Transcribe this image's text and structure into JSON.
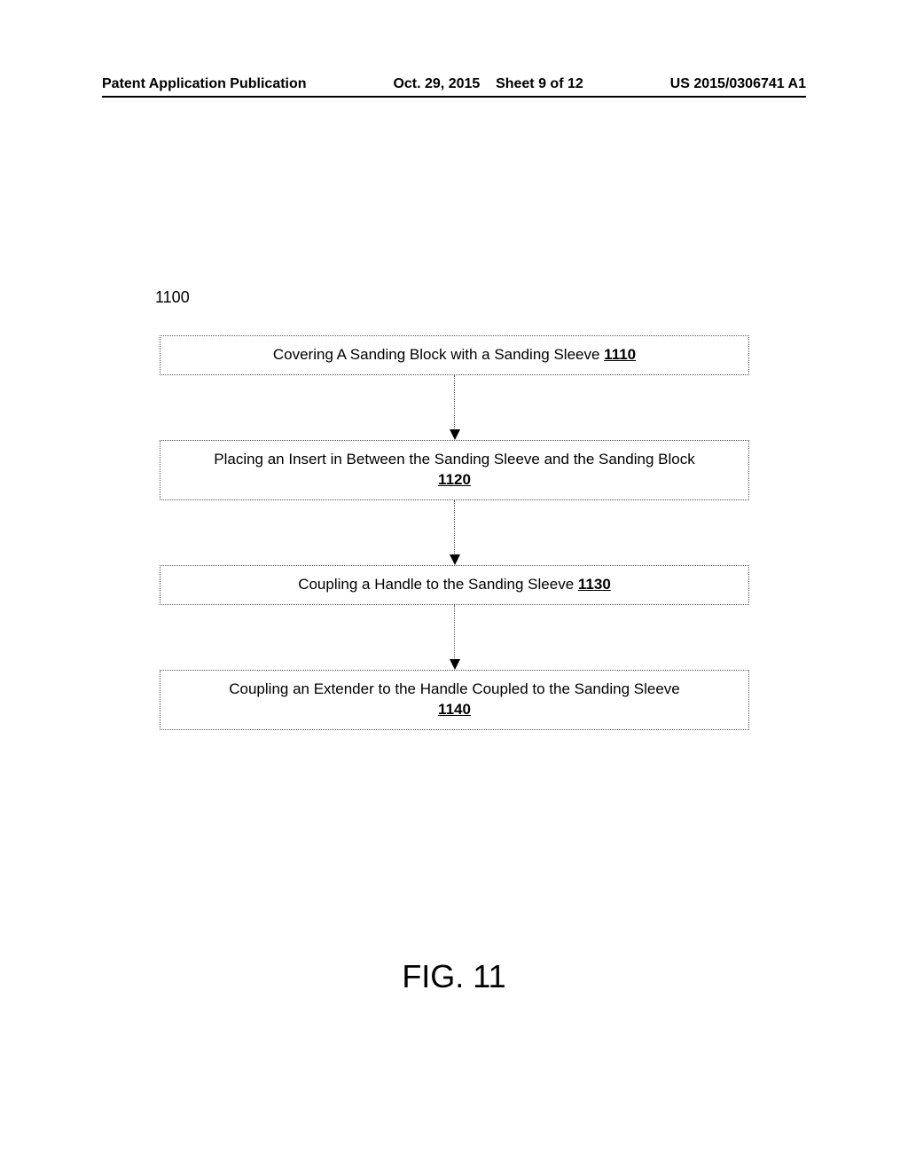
{
  "header": {
    "publication_type": "Patent Application Publication",
    "date": "Oct. 29, 2015",
    "sheet_info": "Sheet 9 of 12",
    "publication_number": "US 2015/0306741 A1"
  },
  "diagram": {
    "reference_number": "1100",
    "figure_label": "FIG. 11",
    "type": "flowchart",
    "box_border_style": "dotted",
    "box_border_color": "#555555",
    "arrow_style": "dotted",
    "arrow_color": "#555555",
    "arrowhead_color": "#000000",
    "background_color": "#ffffff",
    "text_color": "#000000",
    "font_size_body": 17,
    "font_size_figure_label": 36,
    "font_size_header": 16,
    "steps": [
      {
        "text": "Covering A Sanding Block with a Sanding Sleeve",
        "ref": "1110",
        "multiline": false
      },
      {
        "text": "Placing an Insert in Between the Sanding Sleeve and the Sanding Block",
        "ref": "1120",
        "multiline": true
      },
      {
        "text": "Coupling a Handle to the Sanding Sleeve",
        "ref": "1130",
        "multiline": false
      },
      {
        "text": "Coupling an Extender to the Handle Coupled to the Sanding Sleeve",
        "ref": "1140",
        "multiline": true
      }
    ]
  }
}
